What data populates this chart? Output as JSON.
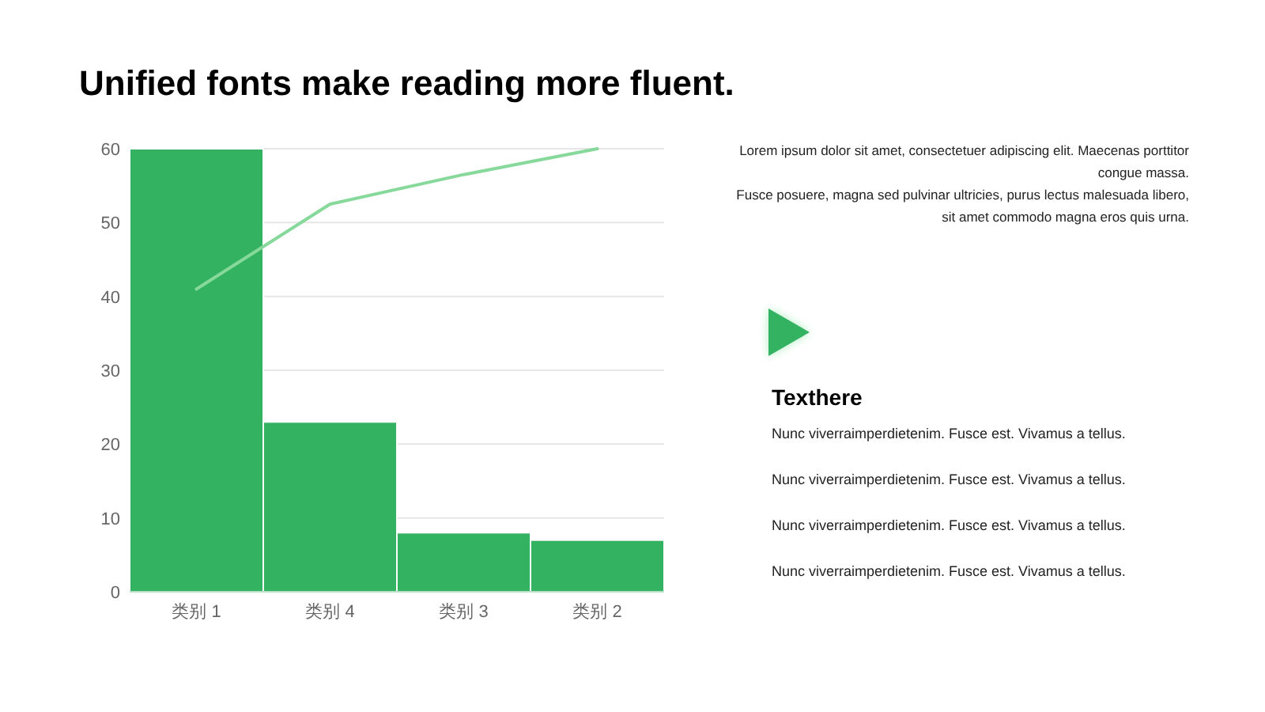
{
  "chart_data": [
    {
      "type": "bar",
      "title": "Unified fonts make reading more fluent.",
      "categories": [
        "类别 1",
        "类别 4",
        "类别 3",
        "类别 2"
      ],
      "series": [
        {
          "type": "bar",
          "color": "#33b262",
          "values": [
            60,
            23,
            8,
            7
          ]
        },
        {
          "type": "line",
          "color": "#86d99a",
          "values": [
            41,
            52.5,
            56.5,
            60
          ]
        }
      ],
      "ylim": [
        0,
        60
      ],
      "yticks": [
        0,
        10,
        20,
        30,
        40,
        50,
        60
      ],
      "grid": "y",
      "marker": "none",
      "line_style": "solid",
      "annotations": [
        "Lorem ipsum dolor sit amet, consectetuer adipiscing elit. Maecenas porttitor congue massa.",
        "Fusce posuere, magna sed pulvinar ultricies, purus lectus malesuada libero, sit amet commodo magna eros quis urna."
      ]
    },
    {
      "type": "other",
      "title": "Texthere",
      "annotations": [
        "Nunc viverraimperdietenim. Fusce est. Vivamus a tellus.",
        "Nunc viverraimperdietenim. Fusce est. Vivamus a tellus.",
        "Nunc viverraimperdietenim. Fusce est. Vivamus a tellus.",
        "Nunc viverraimperdietenim. Fusce est. Vivamus a tellus."
      ]
    }
  ]
}
